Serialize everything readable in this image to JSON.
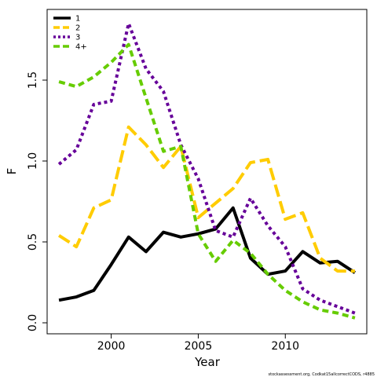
{
  "chart_data": {
    "type": "line",
    "x_label": "Year",
    "y_label": "F",
    "footnote": "stockassessment.org, Codkat15allcorrectCODS, r4885",
    "x": [
      1997,
      1998,
      1999,
      2000,
      2001,
      2002,
      2003,
      2004,
      2005,
      2006,
      2007,
      2008,
      2009,
      2010,
      2011,
      2012,
      2013,
      2014
    ],
    "xlim": [
      1996.32,
      2014.68
    ],
    "xticks": [
      2000,
      2005,
      2010
    ],
    "ylim": [
      -0.068,
      1.937
    ],
    "yticks": [
      {
        "value": 0,
        "label": "0.0"
      },
      0.5,
      {
        "value": 1,
        "label": "1.0"
      },
      1.5
    ],
    "legend": "top-left",
    "series": [
      {
        "name": "1",
        "color": "#000000",
        "values": [
          0.14,
          0.16,
          0.2,
          0.36,
          0.53,
          0.44,
          0.56,
          0.53,
          0.55,
          0.58,
          0.71,
          0.4,
          0.3,
          0.32,
          0.44,
          0.37,
          0.38,
          0.31
        ]
      },
      {
        "name": "2",
        "color": "#ffcc00",
        "values": [
          0.54,
          0.47,
          0.71,
          0.76,
          1.21,
          1.1,
          0.96,
          1.09,
          0.65,
          0.74,
          0.83,
          0.99,
          1.01,
          0.64,
          0.68,
          0.4,
          0.32,
          0.32
        ]
      },
      {
        "name": "3",
        "color": "#660099",
        "values": [
          0.98,
          1.07,
          1.35,
          1.37,
          1.85,
          1.57,
          1.43,
          1.1,
          0.89,
          0.57,
          0.53,
          0.77,
          0.6,
          0.47,
          0.21,
          0.14,
          0.1,
          0.06
        ]
      },
      {
        "name": "4+",
        "color": "#66cc00",
        "values": [
          1.49,
          1.46,
          1.52,
          1.61,
          1.72,
          1.39,
          1.06,
          1.09,
          0.55,
          0.38,
          0.51,
          0.43,
          0.3,
          0.2,
          0.13,
          0.08,
          0.06,
          0.03
        ]
      }
    ]
  }
}
